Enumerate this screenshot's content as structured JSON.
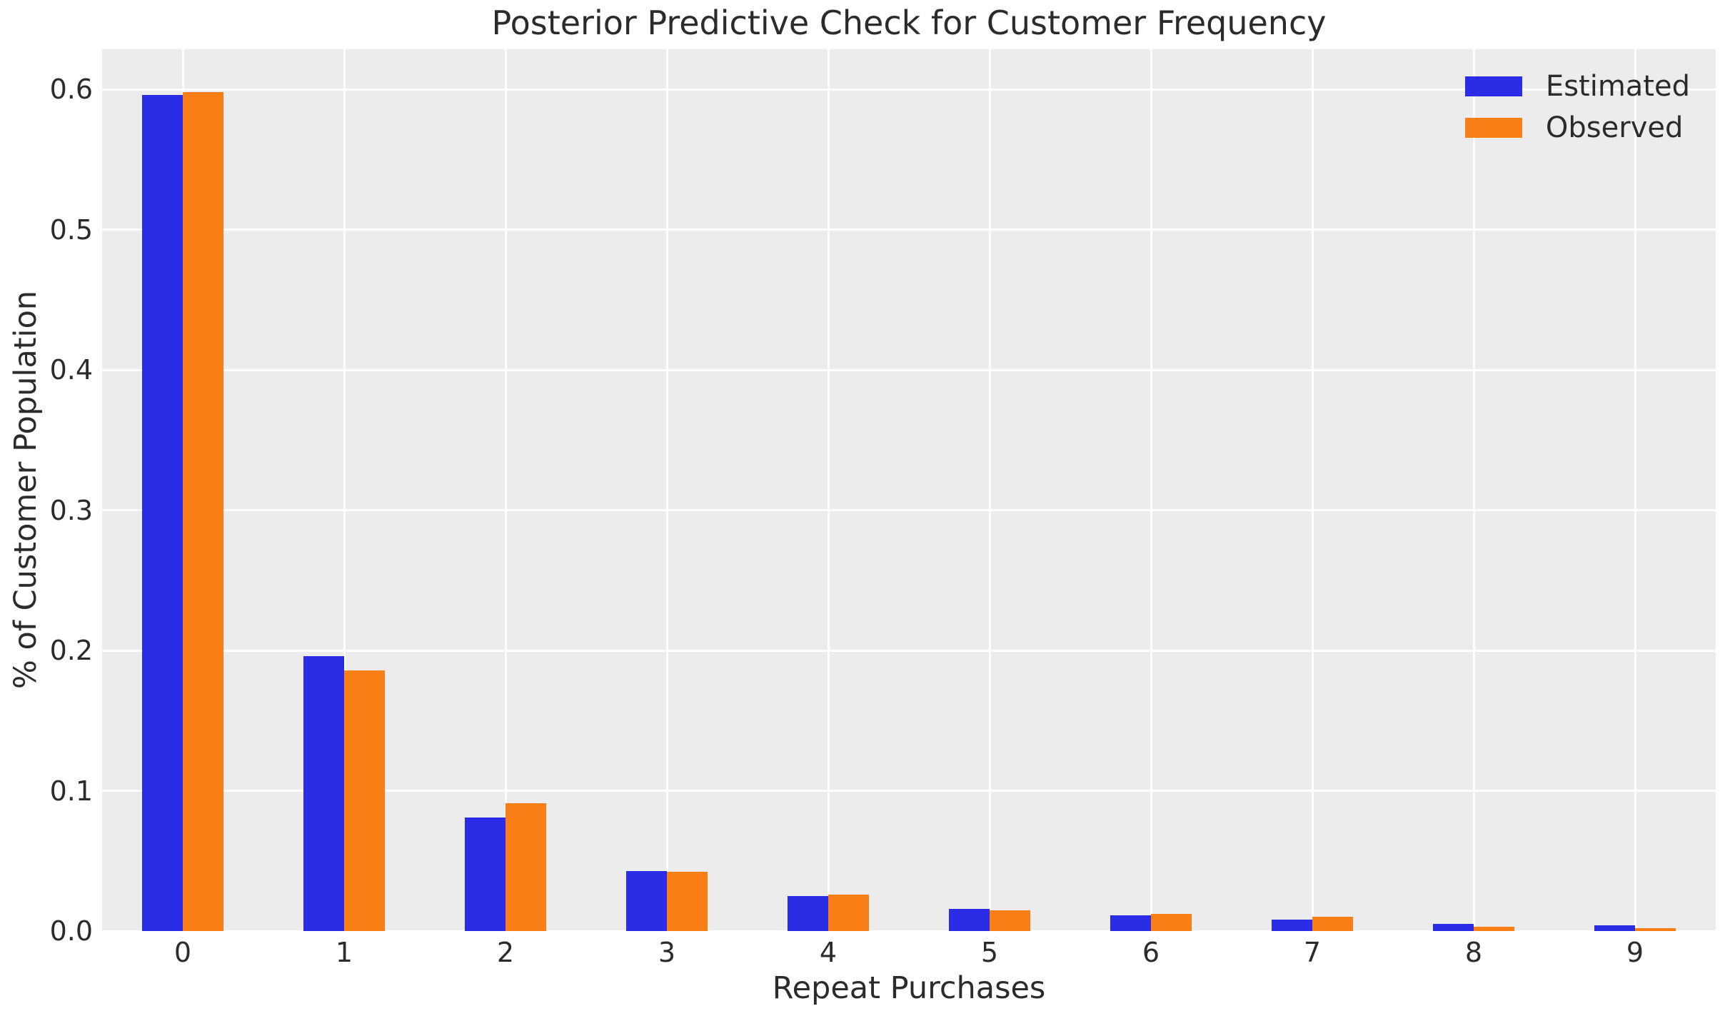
{
  "chart_data": {
    "type": "bar",
    "title": "Posterior Predictive Check for Customer Frequency",
    "xlabel": "Repeat Purchases",
    "ylabel": "% of Customer Population",
    "categories": [
      "0",
      "1",
      "2",
      "3",
      "4",
      "5",
      "6",
      "7",
      "8",
      "9"
    ],
    "series": [
      {
        "name": "Estimated",
        "color": "#2b2ce6",
        "values": [
          0.596,
          0.196,
          0.081,
          0.043,
          0.025,
          0.016,
          0.011,
          0.008,
          0.005,
          0.004
        ]
      },
      {
        "name": "Observed",
        "color": "#f97e16",
        "values": [
          0.598,
          0.186,
          0.091,
          0.042,
          0.026,
          0.015,
          0.012,
          0.01,
          0.003,
          0.002
        ]
      }
    ],
    "ylim": [
      0,
      0.6285
    ],
    "yticks": [
      0.0,
      0.1,
      0.2,
      0.3,
      0.4,
      0.5,
      0.6
    ],
    "ytick_labels": [
      "0.0",
      "0.1",
      "0.2",
      "0.3",
      "0.4",
      "0.5",
      "0.6"
    ],
    "grid": true,
    "gridline_color": "#ffffff",
    "plot_background": "#ececec",
    "text_color": "#2b2b2b",
    "legend_position": "upper right",
    "legend_frame": false
  }
}
